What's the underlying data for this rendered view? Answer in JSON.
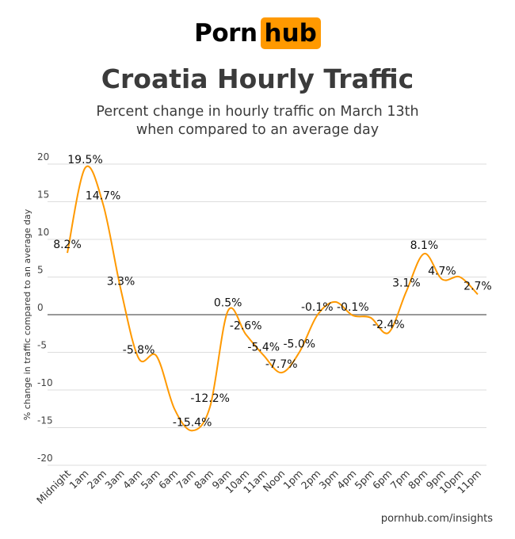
{
  "logo": {
    "part1": "Porn",
    "part2": "hub"
  },
  "title": "Croatia Hourly Traffic",
  "subtitle_line1": "Percent change in hourly traffic on March 13th",
  "subtitle_line2": "when compared to an average day",
  "footer": "pornhub.com/insights",
  "colors": {
    "line": "#ff9900",
    "brand": "#ff9900",
    "text": "#3b3b3b",
    "grid": "#dddddd",
    "zero_line": "#999999"
  },
  "chart_data": {
    "type": "line",
    "title": "Croatia Hourly Traffic",
    "xlabel": "",
    "ylabel": "% change in traffic compared to an average day",
    "ylim": [
      -20,
      20
    ],
    "yticks": [
      20,
      15,
      10,
      5,
      0,
      -5,
      -10,
      -15,
      -20
    ],
    "grid": true,
    "smooth": true,
    "categories": [
      "Midnight",
      "1am",
      "2am",
      "3am",
      "4am",
      "5am",
      "6am",
      "7am",
      "8am",
      "9am",
      "10am",
      "11am",
      "Noon",
      "1pm",
      "2pm",
      "3pm",
      "4pm",
      "5pm",
      "6pm",
      "7pm",
      "8pm",
      "9pm",
      "10pm",
      "11pm"
    ],
    "values": [
      8.2,
      19.5,
      14.7,
      3.3,
      -5.8,
      -5.5,
      -12.5,
      -15.4,
      -12.2,
      0.5,
      -2.6,
      -5.4,
      -7.7,
      -5.0,
      -0.1,
      1.7,
      -0.1,
      -0.4,
      -2.4,
      3.1,
      8.1,
      4.7,
      5.0,
      2.7
    ],
    "data_labels": [
      "8.2%",
      "19.5%",
      "14.7%",
      "3.3%",
      "-5.8%",
      null,
      null,
      "-15.4%",
      "-12.2%",
      "0.5%",
      "-2.6%",
      "-5.4%",
      "-7.7%",
      "-5.0%",
      "-0.1%",
      null,
      "-0.1%",
      null,
      "-2.4%",
      "3.1%",
      "8.1%",
      "4.7%",
      null,
      "2.7%"
    ]
  }
}
